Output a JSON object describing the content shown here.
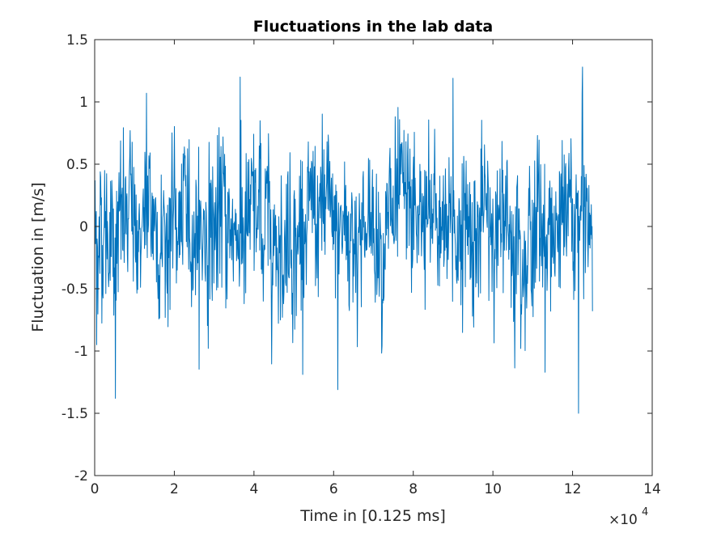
{
  "chart_data": {
    "type": "line",
    "title": "Fluctuations in the lab data",
    "xlabel": "Time in [0.125 ms]",
    "ylabel": "Fluctuation in [m/s]",
    "x_exponent_base": "×10",
    "x_exponent_power": "4",
    "xlim": [
      0,
      140000
    ],
    "ylim": [
      -2,
      1.5
    ],
    "xticks": [
      0,
      20000,
      40000,
      60000,
      80000,
      100000,
      120000,
      140000
    ],
    "xtick_labels": [
      "0",
      "2",
      "4",
      "6",
      "8",
      "10",
      "12",
      "14"
    ],
    "yticks": [
      -2,
      -1.5,
      -1,
      -0.5,
      0,
      0.5,
      1,
      1.5
    ],
    "ytick_labels": [
      "-2",
      "-1.5",
      "-1",
      "-0.5",
      "0",
      "0.5",
      "1",
      "1.5"
    ],
    "grid": false,
    "series": [
      {
        "color": "#0072BD",
        "x_start": 0,
        "x_end": 125000,
        "num_points": 1250,
        "y_min": -1.5,
        "y_max": 1.28,
        "notable_points": [
          {
            "x": 500,
            "y": -0.95
          },
          {
            "x": 5200,
            "y": -1.38
          },
          {
            "x": 13000,
            "y": 1.07
          },
          {
            "x": 36500,
            "y": 1.2
          },
          {
            "x": 61000,
            "y": -1.31
          },
          {
            "x": 90000,
            "y": 1.19
          },
          {
            "x": 121500,
            "y": -1.5
          },
          {
            "x": 122500,
            "y": 1.28
          }
        ]
      }
    ]
  }
}
